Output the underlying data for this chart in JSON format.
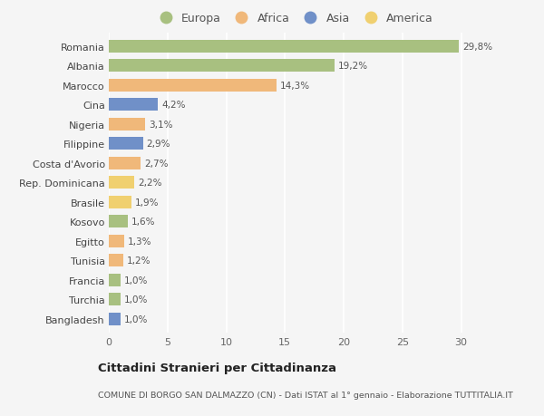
{
  "countries": [
    "Romania",
    "Albania",
    "Marocco",
    "Cina",
    "Nigeria",
    "Filippine",
    "Costa d'Avorio",
    "Rep. Dominicana",
    "Brasile",
    "Kosovo",
    "Egitto",
    "Tunisia",
    "Francia",
    "Turchia",
    "Bangladesh"
  ],
  "values": [
    29.8,
    19.2,
    14.3,
    4.2,
    3.1,
    2.9,
    2.7,
    2.2,
    1.9,
    1.6,
    1.3,
    1.2,
    1.0,
    1.0,
    1.0
  ],
  "labels": [
    "29,8%",
    "19,2%",
    "14,3%",
    "4,2%",
    "3,1%",
    "2,9%",
    "2,7%",
    "2,2%",
    "1,9%",
    "1,6%",
    "1,3%",
    "1,2%",
    "1,0%",
    "1,0%",
    "1,0%"
  ],
  "colors": [
    "#a8c080",
    "#a8c080",
    "#f0b87a",
    "#7090c8",
    "#f0b87a",
    "#7090c8",
    "#f0b87a",
    "#f0d070",
    "#f0d070",
    "#a8c080",
    "#f0b87a",
    "#f0b87a",
    "#a8c080",
    "#a8c080",
    "#7090c8"
  ],
  "legend_labels": [
    "Europa",
    "Africa",
    "Asia",
    "America"
  ],
  "legend_colors": [
    "#a8c080",
    "#f0b87a",
    "#7090c8",
    "#f0d070"
  ],
  "title": "Cittadini Stranieri per Cittadinanza",
  "subtitle": "COMUNE DI BORGO SAN DALMAZZO (CN) - Dati ISTAT al 1° gennaio - Elaborazione TUTTITALIA.IT",
  "xlim": [
    0,
    31.5
  ],
  "xticks": [
    0,
    5,
    10,
    15,
    20,
    25,
    30
  ],
  "background_color": "#f5f5f5",
  "grid_color": "#ffffff",
  "bar_height": 0.65,
  "label_fontsize": 7.5,
  "ytick_fontsize": 8,
  "xtick_fontsize": 8
}
